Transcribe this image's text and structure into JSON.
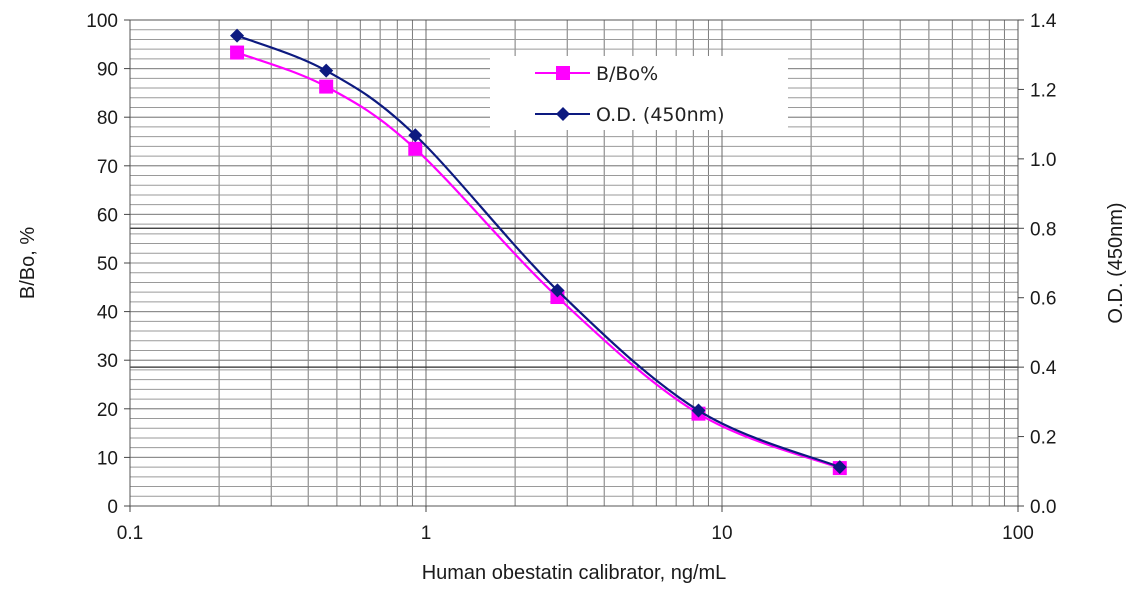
{
  "chart_data": {
    "type": "line",
    "title": "",
    "xlabel": "Human obestatin calibrator, ng/mL",
    "ylabel": "B/Bo, %",
    "y2label": "O.D. (450nm)",
    "xscale": "log",
    "xlim": [
      0.1,
      100
    ],
    "ylim": [
      0,
      100
    ],
    "y2lim": [
      0,
      1.4
    ],
    "grid": true,
    "legend_position": "top-center",
    "x_tick_labels": [
      "0.1",
      "1",
      "10",
      "100"
    ],
    "y_tick_labels": [
      "0",
      "10",
      "20",
      "30",
      "40",
      "50",
      "60",
      "70",
      "80",
      "90",
      "100"
    ],
    "y2_tick_labels": [
      "0.0",
      "0.2",
      "0.4",
      "0.6",
      "0.8",
      "1.0",
      "1.2",
      "1.4"
    ],
    "x": [
      0.23,
      0.46,
      0.92,
      2.78,
      8.33,
      25.0
    ],
    "series": [
      {
        "name": "B/Bo%",
        "axis": "left",
        "marker": "square",
        "color": "#ff00ff",
        "values": [
          93.3,
          86.3,
          73.5,
          43.0,
          19.0,
          7.8
        ]
      },
      {
        "name": "O.D. (450nm)",
        "axis": "right",
        "marker": "diamond",
        "color": "#0d1a80",
        "values": [
          1.355,
          1.254,
          1.068,
          0.621,
          0.275,
          0.112
        ]
      }
    ]
  }
}
